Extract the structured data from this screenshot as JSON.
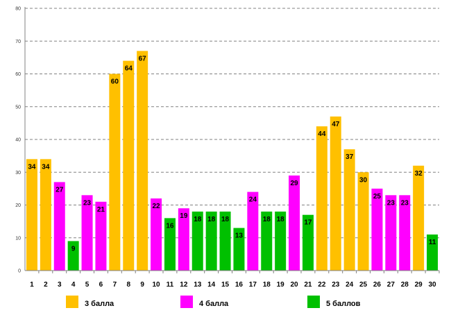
{
  "chart_data": {
    "type": "bar",
    "title": "",
    "xlabel": "",
    "ylabel": "",
    "ylim": [
      0,
      80
    ],
    "yticks": [
      0,
      10,
      20,
      30,
      40,
      50,
      60,
      70,
      80
    ],
    "grid": true,
    "legend_position": "bottom",
    "categories": [
      "1",
      "2",
      "3",
      "4",
      "5",
      "6",
      "7",
      "8",
      "9",
      "10",
      "11",
      "12",
      "13",
      "14",
      "15",
      "16",
      "17",
      "18",
      "19",
      "20",
      "21",
      "22",
      "23",
      "24",
      "25",
      "26",
      "27",
      "28",
      "29",
      "30"
    ],
    "values": [
      34,
      34,
      27,
      9,
      23,
      21,
      60,
      64,
      67,
      22,
      16,
      19,
      18,
      18,
      18,
      13,
      24,
      18,
      18,
      29,
      17,
      44,
      47,
      37,
      30,
      25,
      23,
      23,
      32,
      11
    ],
    "series_index": [
      0,
      0,
      1,
      2,
      1,
      1,
      0,
      0,
      0,
      1,
      2,
      1,
      2,
      2,
      2,
      2,
      1,
      2,
      2,
      1,
      2,
      0,
      0,
      0,
      0,
      1,
      1,
      1,
      0,
      2
    ],
    "series": [
      {
        "name": "3 балла",
        "color": "#FFC000"
      },
      {
        "name": "4 балла",
        "color": "#FF00FF"
      },
      {
        "name": "5 баллов",
        "color": "#00C000"
      }
    ]
  }
}
